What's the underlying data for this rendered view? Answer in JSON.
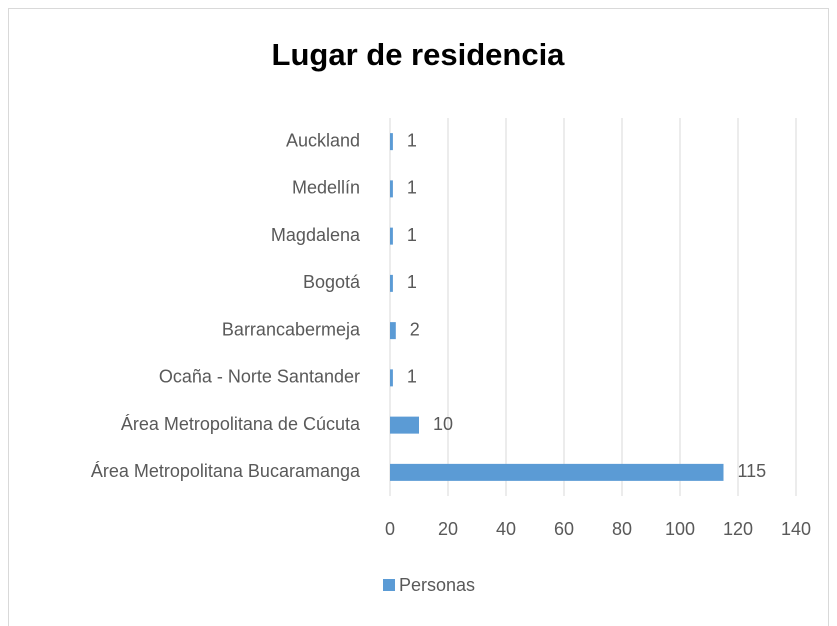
{
  "chart_data": {
    "type": "bar",
    "orientation": "horizontal",
    "title": "Lugar de residencia",
    "categories": [
      "Auckland",
      "Medellín",
      "Magdalena",
      "Bogotá",
      "Barrancabermeja",
      "Ocaña - Norte Santander",
      "Área Metropolitana de Cúcuta",
      "Área Metropolitana Bucaramanga"
    ],
    "series": [
      {
        "name": "Personas",
        "color": "#5b9bd5",
        "values": [
          1,
          1,
          1,
          1,
          2,
          1,
          10,
          115
        ]
      }
    ],
    "xlim": [
      0,
      140
    ],
    "xticks": [
      0,
      20,
      40,
      60,
      80,
      100,
      120,
      140
    ],
    "grid": true,
    "legend": "bottom"
  }
}
